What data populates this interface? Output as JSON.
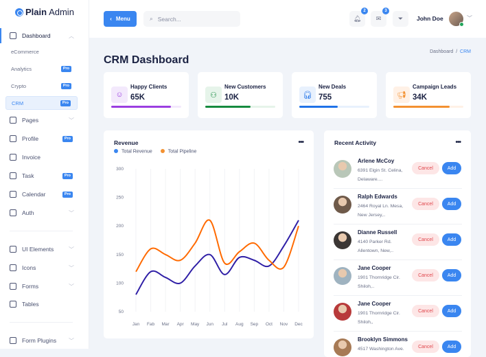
{
  "brand": {
    "name_bold": "Plain",
    "name_rest": "Admin"
  },
  "sidebar": {
    "dashboard": "Dashboard",
    "sub": [
      {
        "label": "eCommerce",
        "pro": false
      },
      {
        "label": "Analytics",
        "pro": true
      },
      {
        "label": "Crypto",
        "pro": true
      },
      {
        "label": "CRM",
        "pro": true,
        "active": true
      }
    ],
    "items": [
      {
        "label": "Pages",
        "chevron": true
      },
      {
        "label": "Profile",
        "pro": true
      },
      {
        "label": "Invoice"
      },
      {
        "label": "Task",
        "pro": true
      },
      {
        "label": "Calendar",
        "pro": true
      },
      {
        "label": "Auth",
        "chevron": true
      }
    ],
    "items2": [
      {
        "label": "UI Elements",
        "chevron": true
      },
      {
        "label": "Icons",
        "chevron": true
      },
      {
        "label": "Forms",
        "chevron": true
      },
      {
        "label": "Tables"
      }
    ],
    "items3": [
      {
        "label": "Form Plugins",
        "chevron": true
      }
    ],
    "pro_label": "Pro"
  },
  "header": {
    "menu_label": "Menu",
    "search_placeholder": "Search...",
    "notifications_count": "2",
    "messages_count": "3",
    "user_name": "John Doe"
  },
  "page": {
    "title": "CRM Dashboard",
    "breadcrumb": [
      "Dashboard",
      "CRM"
    ]
  },
  "stats": [
    {
      "label": "Happy Clients",
      "value": "65K",
      "progress": 0.85,
      "color": "#9b3ee0",
      "bg": "#f3e9fc",
      "icon": "smile-icon"
    },
    {
      "label": "New Customers",
      "value": "10K",
      "progress": 0.65,
      "color": "#168a3f",
      "bg": "#e6f4ea",
      "icon": "users-icon"
    },
    {
      "label": "New Deals",
      "value": "755",
      "progress": 0.55,
      "color": "#1f72e8",
      "bg": "#e8f1fd",
      "icon": "headphones-icon"
    },
    {
      "label": "Campaign Leads",
      "value": "34K",
      "progress": 0.8,
      "color": "#f39131",
      "bg": "#fff1e6",
      "icon": "megaphone-icon"
    }
  ],
  "chart_data": {
    "type": "line",
    "title": "Revenue",
    "categories": [
      "Jan",
      "Fab",
      "Mar",
      "Apr",
      "May",
      "Jun",
      "Jul",
      "Aug",
      "Sep",
      "Oct",
      "Nov",
      "Dec"
    ],
    "series": [
      {
        "name": "Total Revenue",
        "color": "#2f1fa6",
        "legend_color": "#3a86f0",
        "values": [
          80,
          120,
          110,
          100,
          130,
          150,
          115,
          145,
          140,
          130,
          165,
          210
        ]
      },
      {
        "name": "Total Pipeline",
        "color": "#ff6a00",
        "legend_color": "#f39131",
        "values": [
          120,
          160,
          150,
          140,
          170,
          210,
          135,
          155,
          170,
          140,
          128,
          200
        ]
      }
    ],
    "yticks": [
      300,
      250,
      200,
      150,
      100,
      50
    ],
    "ylim": [
      50,
      300
    ],
    "grid": "vertical"
  },
  "activity": {
    "title": "Recent Activity",
    "cancel_label": "Cancel",
    "add_label": "Add",
    "items": [
      {
        "name": "Arlene McCoy",
        "addr": "6391 Elgin St. Celina, Delaware....",
        "avatar": "#b9c7b8"
      },
      {
        "name": "Ralph Edwards",
        "addr": "2464 Royal Ln. Mesa, New Jersey,..",
        "avatar": "#6f5a4a"
      },
      {
        "name": "Dianne Russell",
        "addr": "4140 Parker Rd. Allentown, New,..",
        "avatar": "#3b3634"
      },
      {
        "name": "Jane Cooper",
        "addr": "1901 Thornridge Cir. Shiloh,..",
        "avatar": "#9fb3c0"
      },
      {
        "name": "Jane Cooper",
        "addr": "1901 Thornridge Cir. Shiloh,,",
        "avatar": "#b83a3a"
      },
      {
        "name": "Brooklyn Simmons",
        "addr": "4517 Washington Ave.",
        "avatar": "#a77a55"
      }
    ]
  }
}
